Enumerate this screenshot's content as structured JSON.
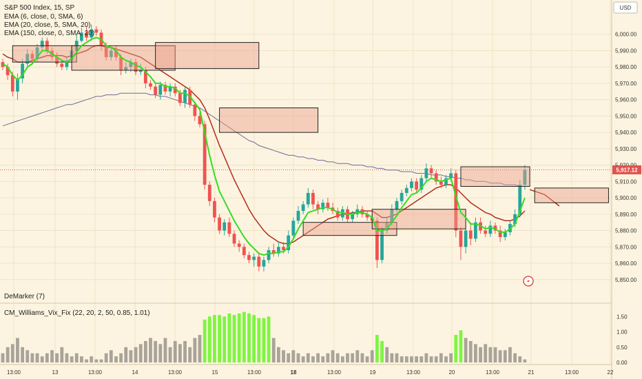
{
  "chart_data": {
    "type": "candlestick",
    "title": "S&P 500 Index, 15, SP",
    "indicators": [
      "EMA (6, close, 0, SMA, 6)",
      "EMA (20, close, 5, SMA, 20)",
      "EMA (150, close, 0, SMA, 20)"
    ],
    "currency": "USD",
    "last_price": 5917.12,
    "last_price_label": "5,917.12",
    "ylim": [
      5844,
      6010
    ],
    "y_ticks": [
      {
        "v": 6000,
        "label": "6,000.00"
      },
      {
        "v": 5990,
        "label": "5,990.00"
      },
      {
        "v": 5980,
        "label": "5,980.00"
      },
      {
        "v": 5970,
        "label": "5,970.00"
      },
      {
        "v": 5960,
        "label": "5,960.00"
      },
      {
        "v": 5950,
        "label": "5,950.00"
      },
      {
        "v": 5940,
        "label": "5,940.00"
      },
      {
        "v": 5930,
        "label": "5,930.00"
      },
      {
        "v": 5920,
        "label": "5,920.00"
      },
      {
        "v": 5910,
        "label": "5,910.00"
      },
      {
        "v": 5900,
        "label": "5,900.00"
      },
      {
        "v": 5890,
        "label": "5,890.00"
      },
      {
        "v": 5880,
        "label": "5,880.00"
      },
      {
        "v": 5870,
        "label": "5,870.00"
      },
      {
        "v": 5860,
        "label": "5,860.00"
      },
      {
        "v": 5850,
        "label": "5,850.00"
      }
    ],
    "x_ticks": [
      "13:00",
      "13",
      "13:00",
      "14",
      "13:00",
      "15",
      "13:00",
      "18",
      "13:00",
      "19",
      "13:00",
      "20",
      "13:00",
      "21",
      "13:00",
      "22"
    ],
    "x_ticks_bold": [
      "18"
    ],
    "candles": [
      [
        5983,
        5980,
        5978,
        5985
      ],
      [
        5980,
        5975,
        5972,
        5982
      ],
      [
        5975,
        5965,
        5962,
        5977
      ],
      [
        5965,
        5973,
        5960,
        5976
      ],
      [
        5973,
        5982,
        5970,
        5985
      ],
      [
        5982,
        5988,
        5980,
        5991
      ],
      [
        5988,
        5985,
        5983,
        5990
      ],
      [
        5985,
        5992,
        5983,
        5994
      ],
      [
        5992,
        5996,
        5990,
        5998
      ],
      [
        5996,
        5990,
        5988,
        5998
      ],
      [
        5990,
        5986,
        5984,
        5992
      ],
      [
        5986,
        5982,
        5980,
        5989
      ],
      [
        5982,
        5980,
        5978,
        5985
      ],
      [
        5980,
        5984,
        5978,
        5986
      ],
      [
        5984,
        5990,
        5982,
        5993
      ],
      [
        5990,
        5996,
        5988,
        6000
      ],
      [
        5996,
        6001,
        5995,
        6004
      ],
      [
        6001,
        5998,
        5996,
        6005
      ],
      [
        5998,
        6003,
        5996,
        6006
      ],
      [
        6003,
        6001,
        5999,
        6005
      ],
      [
        6001,
        5993,
        5990,
        6003
      ],
      [
        5993,
        5986,
        5984,
        5995
      ],
      [
        5986,
        5990,
        5984,
        5992
      ],
      [
        5990,
        5986,
        5984,
        5993
      ],
      [
        5986,
        5978,
        5975,
        5988
      ],
      [
        5978,
        5980,
        5976,
        5983
      ],
      [
        5980,
        5983,
        5977,
        5985
      ],
      [
        5983,
        5977,
        5975,
        5985
      ],
      [
        5977,
        5978,
        5975,
        5982
      ],
      [
        5978,
        5970,
        5967,
        5980
      ],
      [
        5970,
        5968,
        5966,
        5972
      ],
      [
        5968,
        5963,
        5961,
        5970
      ],
      [
        5963,
        5969,
        5960,
        5971
      ],
      [
        5969,
        5965,
        5963,
        5971
      ],
      [
        5965,
        5968,
        5962,
        5970
      ],
      [
        5968,
        5964,
        5962,
        5970
      ],
      [
        5964,
        5958,
        5956,
        5966
      ],
      [
        5958,
        5966,
        5955,
        5968
      ],
      [
        5966,
        5957,
        5955,
        5968
      ],
      [
        5957,
        5950,
        5947,
        5959
      ],
      [
        5950,
        5945,
        5943,
        5952
      ],
      [
        5945,
        5908,
        5905,
        5947
      ],
      [
        5908,
        5898,
        5895,
        5910
      ],
      [
        5898,
        5888,
        5885,
        5900
      ],
      [
        5888,
        5880,
        5878,
        5890
      ],
      [
        5880,
        5885,
        5877,
        5887
      ],
      [
        5885,
        5878,
        5876,
        5888
      ],
      [
        5878,
        5872,
        5870,
        5880
      ],
      [
        5872,
        5870,
        5867,
        5874
      ],
      [
        5870,
        5865,
        5863,
        5872
      ],
      [
        5865,
        5862,
        5860,
        5867
      ],
      [
        5862,
        5864,
        5858,
        5866
      ],
      [
        5864,
        5858,
        5855,
        5866
      ],
      [
        5858,
        5862,
        5855,
        5864
      ],
      [
        5862,
        5868,
        5860,
        5870
      ],
      [
        5868,
        5866,
        5864,
        5872
      ],
      [
        5866,
        5870,
        5864,
        5873
      ],
      [
        5870,
        5868,
        5866,
        5873
      ],
      [
        5868,
        5877,
        5866,
        5880
      ],
      [
        5877,
        5886,
        5875,
        5888
      ],
      [
        5886,
        5892,
        5884,
        5895
      ],
      [
        5892,
        5896,
        5890,
        5898
      ],
      [
        5896,
        5903,
        5894,
        5906
      ],
      [
        5903,
        5896,
        5893,
        5905
      ],
      [
        5896,
        5893,
        5890,
        5898
      ],
      [
        5893,
        5897,
        5891,
        5899
      ],
      [
        5897,
        5894,
        5892,
        5900
      ],
      [
        5894,
        5892,
        5890,
        5897
      ],
      [
        5892,
        5888,
        5886,
        5894
      ],
      [
        5888,
        5893,
        5886,
        5895
      ],
      [
        5893,
        5887,
        5885,
        5895
      ],
      [
        5887,
        5890,
        5885,
        5892
      ],
      [
        5890,
        5893,
        5888,
        5896
      ],
      [
        5893,
        5890,
        5888,
        5895
      ],
      [
        5890,
        5888,
        5886,
        5892
      ],
      [
        5888,
        5886,
        5884,
        5890
      ],
      [
        5886,
        5862,
        5857,
        5888
      ],
      [
        5862,
        5880,
        5860,
        5882
      ],
      [
        5880,
        5885,
        5878,
        5888
      ],
      [
        5885,
        5893,
        5883,
        5896
      ],
      [
        5893,
        5898,
        5891,
        5900
      ],
      [
        5898,
        5903,
        5896,
        5905
      ],
      [
        5903,
        5906,
        5901,
        5908
      ],
      [
        5906,
        5910,
        5904,
        5912
      ],
      [
        5910,
        5905,
        5903,
        5912
      ],
      [
        5905,
        5912,
        5903,
        5914
      ],
      [
        5912,
        5918,
        5910,
        5921
      ],
      [
        5918,
        5915,
        5912,
        5920
      ],
      [
        5915,
        5910,
        5908,
        5917
      ],
      [
        5910,
        5908,
        5906,
        5913
      ],
      [
        5908,
        5912,
        5906,
        5914
      ],
      [
        5912,
        5915,
        5910,
        5918
      ],
      [
        5915,
        5880,
        5876,
        5917
      ],
      [
        5880,
        5870,
        5862,
        5882
      ],
      [
        5870,
        5880,
        5866,
        5883
      ],
      [
        5880,
        5875,
        5871,
        5885
      ],
      [
        5875,
        5885,
        5873,
        5888
      ],
      [
        5885,
        5880,
        5878,
        5888
      ],
      [
        5880,
        5878,
        5876,
        5883
      ],
      [
        5878,
        5883,
        5876,
        5886
      ],
      [
        5883,
        5880,
        5878,
        5885
      ],
      [
        5880,
        5876,
        5873,
        5883
      ],
      [
        5876,
        5879,
        5874,
        5881
      ],
      [
        5879,
        5884,
        5877,
        5886
      ],
      [
        5884,
        5890,
        5882,
        5893
      ],
      [
        5890,
        5908,
        5888,
        5911
      ],
      [
        5908,
        5917,
        5905,
        5920
      ]
    ],
    "ema6": [
      5982,
      5980,
      5975,
      5972,
      5975,
      5980,
      5982,
      5986,
      5990,
      5990,
      5988,
      5986,
      5984,
      5983,
      5985,
      5989,
      5993,
      5995,
      5997,
      5998,
      5997,
      5993,
      5992,
      5990,
      5986,
      5984,
      5983,
      5981,
      5980,
      5977,
      5974,
      5970,
      5970,
      5968,
      5968,
      5967,
      5964,
      5964,
      5962,
      5958,
      5954,
      5940,
      5926,
      5914,
      5904,
      5898,
      5892,
      5886,
      5881,
      5876,
      5872,
      5869,
      5866,
      5865,
      5866,
      5866,
      5867,
      5867,
      5870,
      5875,
      5881,
      5886,
      5891,
      5892,
      5893,
      5894,
      5894,
      5893,
      5891,
      5891,
      5890,
      5890,
      5891,
      5891,
      5890,
      5888,
      5880,
      5880,
      5881,
      5885,
      5889,
      5894,
      5898,
      5902,
      5903,
      5906,
      5910,
      5912,
      5911,
      5910,
      5911,
      5912,
      5901,
      5891,
      5888,
      5884,
      5884,
      5883,
      5881,
      5882,
      5881,
      5879,
      5879,
      5881,
      5884,
      5892,
      5900
    ],
    "ema20": [
      5988,
      5986,
      5985,
      5983,
      5983,
      5983,
      5984,
      5985,
      5986,
      5987,
      5987,
      5987,
      5987,
      5986,
      5987,
      5988,
      5989,
      5990,
      5992,
      5993,
      5993,
      5992,
      5992,
      5991,
      5990,
      5989,
      5988,
      5987,
      5986,
      5984,
      5982,
      5980,
      5978,
      5976,
      5974,
      5972,
      5970,
      5968,
      5966,
      5963,
      5960,
      5955,
      5948,
      5940,
      5932,
      5925,
      5918,
      5911,
      5905,
      5899,
      5893,
      5888,
      5884,
      5880,
      5877,
      5875,
      5873,
      5872,
      5872,
      5873,
      5875,
      5877,
      5879,
      5881,
      5883,
      5885,
      5887,
      5888,
      5889,
      5890,
      5890,
      5891,
      5891,
      5892,
      5892,
      5892,
      5890,
      5888,
      5888,
      5889,
      5890,
      5892,
      5894,
      5896,
      5898,
      5900,
      5902,
      5904,
      5906,
      5907,
      5908,
      5908,
      5906,
      5903,
      5900,
      5897,
      5895,
      5893,
      5891,
      5890,
      5888,
      5887,
      5886,
      5886,
      5887,
      5889,
      5892
    ],
    "ema150": [
      5944,
      5945,
      5946,
      5947,
      5948,
      5949,
      5950,
      5951,
      5952,
      5953,
      5954,
      5955,
      5956,
      5957,
      5957,
      5958,
      5959,
      5960,
      5961,
      5962,
      5962,
      5963,
      5963,
      5963,
      5964,
      5964,
      5964,
      5964,
      5964,
      5964,
      5963,
      5963,
      5962,
      5962,
      5961,
      5960,
      5959,
      5958,
      5957,
      5956,
      5955,
      5953,
      5951,
      5949,
      5947,
      5945,
      5943,
      5941,
      5939,
      5937,
      5935,
      5934,
      5932,
      5931,
      5930,
      5929,
      5928,
      5927,
      5926,
      5926,
      5925,
      5925,
      5924,
      5924,
      5923,
      5923,
      5922,
      5922,
      5921,
      5921,
      5921,
      5920,
      5920,
      5920,
      5919,
      5919,
      5918,
      5918,
      5917,
      5917,
      5917,
      5916,
      5916,
      5916,
      5915,
      5915,
      5915,
      5914,
      5914,
      5914,
      5913,
      5913,
      5912,
      5912,
      5911,
      5911,
      5910,
      5910,
      5910,
      5909,
      5909,
      5909,
      5908,
      5908,
      5908,
      5907,
      5907
    ],
    "zones": [
      {
        "i0": 2,
        "i1": 15,
        "top": 5993,
        "bottom": 5983
      },
      {
        "i0": 14,
        "i1": 35,
        "top": 5993,
        "bottom": 5978
      },
      {
        "i0": 31,
        "i1": 52,
        "top": 5995,
        "bottom": 5979
      },
      {
        "i0": 44,
        "i1": 64,
        "top": 5955,
        "bottom": 5940
      },
      {
        "i0": 61,
        "i1": 80,
        "top": 5885,
        "bottom": 5877
      },
      {
        "i0": 75,
        "i1": 94,
        "top": 5893,
        "bottom": 5881
      },
      {
        "i0": 93,
        "i1": 107,
        "top": 5919,
        "bottom": 5907
      },
      {
        "i0": 108,
        "i1": 123,
        "top": 5906,
        "bottom": 5897
      }
    ],
    "projection": [
      [
        107,
        5905
      ],
      [
        110,
        5902
      ],
      [
        113,
        5895
      ]
    ],
    "demarker_label": "DeMarker (7)",
    "vix_label": "CM_Williams_Vix_Fix (22, 20, 2, 50, 0.85, 1.01)",
    "vix_ylim": [
      0,
      1.8
    ],
    "vix_ticks": [
      {
        "v": 1.5,
        "label": "1.50"
      },
      {
        "v": 1.0,
        "label": "1.00"
      },
      {
        "v": 0.5,
        "label": "0.50"
      },
      {
        "v": 0.0,
        "label": "0.00"
      }
    ],
    "vix_values": [
      0.3,
      0.5,
      0.6,
      0.8,
      0.5,
      0.4,
      0.3,
      0.3,
      0.2,
      0.3,
      0.4,
      0.3,
      0.5,
      0.3,
      0.2,
      0.3,
      0.2,
      0.1,
      0.2,
      0.1,
      0.1,
      0.3,
      0.4,
      0.2,
      0.3,
      0.5,
      0.4,
      0.5,
      0.6,
      0.7,
      0.8,
      0.7,
      0.6,
      0.8,
      0.5,
      0.7,
      0.6,
      0.7,
      0.5,
      0.8,
      0.9,
      1.4,
      1.5,
      1.55,
      1.55,
      1.5,
      1.6,
      1.55,
      1.6,
      1.65,
      1.6,
      1.55,
      1.45,
      1.45,
      1.5,
      0.8,
      0.5,
      0.4,
      0.3,
      0.4,
      0.3,
      0.2,
      0.3,
      0.2,
      0.3,
      0.2,
      0.3,
      0.4,
      0.3,
      0.2,
      0.3,
      0.3,
      0.4,
      0.3,
      0.2,
      0.4,
      0.9,
      0.7,
      0.5,
      0.3,
      0.3,
      0.2,
      0.2,
      0.2,
      0.2,
      0.2,
      0.3,
      0.2,
      0.2,
      0.3,
      0.2,
      0.3,
      0.9,
      1.05,
      0.8,
      0.7,
      0.6,
      0.5,
      0.6,
      0.5,
      0.5,
      0.4,
      0.4,
      0.5,
      0.3,
      0.2,
      0.1
    ],
    "vix_green": [
      false,
      false,
      false,
      false,
      false,
      false,
      false,
      false,
      false,
      false,
      false,
      false,
      false,
      false,
      false,
      false,
      false,
      false,
      false,
      false,
      false,
      false,
      false,
      false,
      false,
      false,
      false,
      false,
      false,
      false,
      false,
      false,
      false,
      false,
      false,
      false,
      false,
      false,
      false,
      false,
      false,
      true,
      true,
      true,
      true,
      true,
      true,
      true,
      true,
      true,
      true,
      true,
      true,
      true,
      true,
      false,
      false,
      false,
      false,
      false,
      false,
      false,
      false,
      false,
      false,
      false,
      false,
      false,
      false,
      false,
      false,
      false,
      false,
      false,
      false,
      false,
      true,
      true,
      false,
      false,
      false,
      false,
      false,
      false,
      false,
      false,
      false,
      false,
      false,
      false,
      false,
      false,
      true,
      true,
      false,
      false,
      false,
      false,
      false,
      false,
      false,
      false,
      false,
      false,
      false,
      false,
      false
    ]
  }
}
